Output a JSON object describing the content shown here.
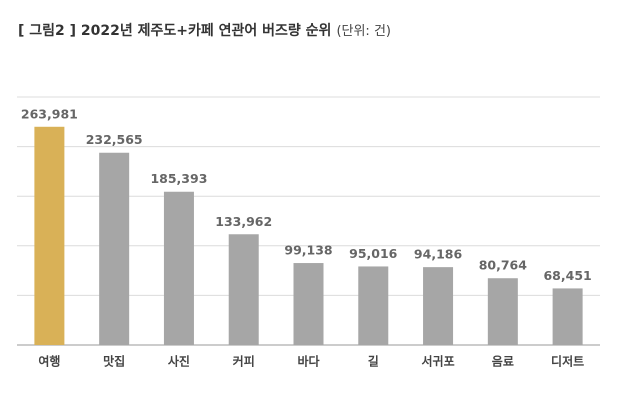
{
  "chart_data": {
    "type": "bar",
    "title": "[ 그림2 ] 2022년 제주도+카페 연관어 버즈량 순위",
    "unit": "(단위: 건)",
    "categories": [
      "여행",
      "맛집",
      "사진",
      "커피",
      "바다",
      "길",
      "서귀포",
      "음료",
      "디저트"
    ],
    "values": [
      263981,
      232565,
      185393,
      133962,
      99138,
      95016,
      94186,
      80764,
      68451
    ],
    "value_labels": [
      "263,981",
      "232,565",
      "185,393",
      "133,962",
      "99,138",
      "95,016",
      "94,186",
      "80,764",
      "68,451"
    ],
    "colors": [
      "#d9b157",
      "#a6a6a6",
      "#a6a6a6",
      "#a6a6a6",
      "#a6a6a6",
      "#a6a6a6",
      "#a6a6a6",
      "#a6a6a6",
      "#a6a6a6"
    ],
    "ylim": [
      0,
      300000
    ],
    "yticks": [
      0,
      60000,
      120000,
      180000,
      240000,
      300000
    ],
    "grid": true
  }
}
